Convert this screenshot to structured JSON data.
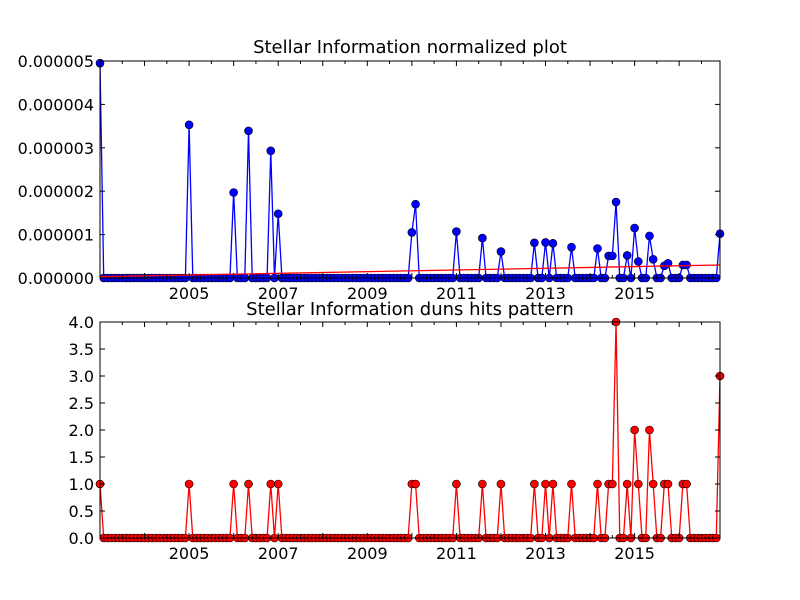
{
  "chart_data": [
    {
      "type": "line",
      "title": "Stellar Information normalized plot",
      "xlabel": "",
      "ylabel": "",
      "x_axis": "date",
      "xlim": [
        "2003-01",
        "2016-12"
      ],
      "ylim": [
        0,
        5e-06
      ],
      "xticks": [
        "2005",
        "2007",
        "2009",
        "2011",
        "2013",
        "2015"
      ],
      "yticks": [
        "0.000000",
        "0.000001",
        "0.000002",
        "0.000003",
        "0.000004",
        "0.000005"
      ],
      "grid": false,
      "legend": "none",
      "series": [
        {
          "style": "blue line with circle markers",
          "color": "#0000ff",
          "spikes": [
            {
              "x": "2003-01",
              "y": 4.95e-06
            },
            {
              "x": "2005-01",
              "y": 3.53e-06
            },
            {
              "x": "2006-01",
              "y": 1.97e-06
            },
            {
              "x": "2006-05",
              "y": 3.39e-06
            },
            {
              "x": "2006-11",
              "y": 2.93e-06
            },
            {
              "x": "2007-01",
              "y": 1.48e-06
            },
            {
              "x": "2010-01",
              "y": 1.05e-06
            },
            {
              "x": "2010-02",
              "y": 1.7e-06
            },
            {
              "x": "2011-01",
              "y": 1.07e-06
            },
            {
              "x": "2011-08",
              "y": 9.2e-07
            },
            {
              "x": "2012-01",
              "y": 6.1e-07
            },
            {
              "x": "2012-10",
              "y": 8.1e-07
            },
            {
              "x": "2013-01",
              "y": 8.2e-07
            },
            {
              "x": "2013-03",
              "y": 8e-07
            },
            {
              "x": "2013-08",
              "y": 7.1e-07
            },
            {
              "x": "2014-03",
              "y": 6.8e-07
            },
            {
              "x": "2014-06",
              "y": 5.1e-07
            },
            {
              "x": "2014-07",
              "y": 5.1e-07
            },
            {
              "x": "2014-08",
              "y": 1.75e-06
            },
            {
              "x": "2014-11",
              "y": 5.2e-07
            },
            {
              "x": "2015-01",
              "y": 1.15e-06
            },
            {
              "x": "2015-02",
              "y": 3.8e-07
            },
            {
              "x": "2015-05",
              "y": 9.7e-07
            },
            {
              "x": "2015-06",
              "y": 4.3e-07
            },
            {
              "x": "2015-09",
              "y": 2.8e-07
            },
            {
              "x": "2015-10",
              "y": 3.4e-07
            },
            {
              "x": "2016-02",
              "y": 3e-07
            },
            {
              "x": "2016-03",
              "y": 3e-07
            },
            {
              "x": "2016-12",
              "y": 1.02e-06
            }
          ],
          "baseline": 0
        },
        {
          "style": "red trend line",
          "color": "#ff0000",
          "points": [
            {
              "x": "2003-01",
              "y": 3e-08
            },
            {
              "x": "2016-12",
              "y": 3e-07
            }
          ]
        }
      ]
    },
    {
      "type": "line",
      "title": "Stellar Information duns hits pattern",
      "xlabel": "",
      "ylabel": "",
      "x_axis": "date",
      "xlim": [
        "2003-01",
        "2016-12"
      ],
      "ylim": [
        0,
        4
      ],
      "xticks": [
        "2005",
        "2007",
        "2009",
        "2011",
        "2013",
        "2015"
      ],
      "yticks": [
        "0.0",
        "0.5",
        "1.0",
        "1.5",
        "2.0",
        "2.5",
        "3.0",
        "3.5",
        "4.0"
      ],
      "grid": false,
      "legend": "none",
      "series": [
        {
          "style": "red line with circle markers",
          "color": "#ff0000",
          "spikes": [
            {
              "x": "2003-01",
              "y": 1
            },
            {
              "x": "2005-01",
              "y": 1
            },
            {
              "x": "2006-01",
              "y": 1
            },
            {
              "x": "2006-05",
              "y": 1
            },
            {
              "x": "2006-11",
              "y": 1
            },
            {
              "x": "2007-01",
              "y": 1
            },
            {
              "x": "2010-01",
              "y": 1
            },
            {
              "x": "2010-02",
              "y": 1
            },
            {
              "x": "2011-01",
              "y": 1
            },
            {
              "x": "2011-08",
              "y": 1
            },
            {
              "x": "2012-01",
              "y": 1
            },
            {
              "x": "2012-10",
              "y": 1
            },
            {
              "x": "2013-01",
              "y": 1
            },
            {
              "x": "2013-03",
              "y": 1
            },
            {
              "x": "2013-08",
              "y": 1
            },
            {
              "x": "2014-03",
              "y": 1
            },
            {
              "x": "2014-06",
              "y": 1
            },
            {
              "x": "2014-07",
              "y": 1
            },
            {
              "x": "2014-08",
              "y": 4
            },
            {
              "x": "2014-11",
              "y": 1
            },
            {
              "x": "2015-01",
              "y": 2
            },
            {
              "x": "2015-02",
              "y": 1
            },
            {
              "x": "2015-05",
              "y": 2
            },
            {
              "x": "2015-06",
              "y": 1
            },
            {
              "x": "2015-09",
              "y": 1
            },
            {
              "x": "2015-10",
              "y": 1
            },
            {
              "x": "2016-02",
              "y": 1
            },
            {
              "x": "2016-03",
              "y": 1
            },
            {
              "x": "2016-12",
              "y": 3
            }
          ],
          "baseline": 0
        }
      ]
    }
  ]
}
